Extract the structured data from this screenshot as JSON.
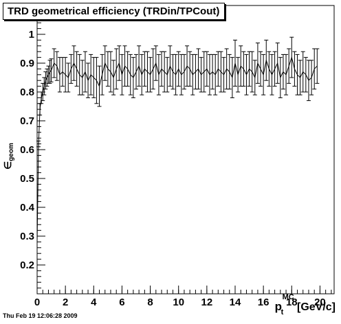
{
  "chart_data": {
    "type": "line",
    "title": "TRD geometrical efficiency (TRDin/TPCout)",
    "xlabel": {
      "symbol": "p",
      "subscript": "t",
      "superscript": "MC",
      "unit": "[GeV/c]"
    },
    "ylabel": {
      "symbol": "∈",
      "subscript": "geom"
    },
    "xlim": [
      0,
      21
    ],
    "ylim": [
      0.1,
      1.1
    ],
    "x_ticks": [
      0,
      2,
      4,
      6,
      8,
      10,
      12,
      14,
      16,
      18,
      20
    ],
    "y_ticks": [
      0.2,
      0.3,
      0.4,
      0.5,
      0.6,
      0.7,
      0.8,
      0.9,
      1
    ],
    "grid": false,
    "series": [
      {
        "x": [
          0.0,
          0.1,
          0.2,
          0.3,
          0.4,
          0.5,
          0.6,
          0.7,
          0.8,
          0.9,
          1.0,
          1.2,
          1.4,
          1.6,
          1.8,
          2.0,
          2.2,
          2.4,
          2.6,
          2.8,
          3.0,
          3.2,
          3.4,
          3.6,
          3.8,
          4.0,
          4.2,
          4.4,
          4.6,
          4.8,
          5.0,
          5.2,
          5.4,
          5.6,
          5.8,
          6.0,
          6.2,
          6.4,
          6.6,
          6.8,
          7.0,
          7.2,
          7.4,
          7.6,
          7.8,
          8.0,
          8.2,
          8.4,
          8.6,
          8.8,
          9.0,
          9.2,
          9.4,
          9.6,
          9.8,
          10.0,
          10.2,
          10.4,
          10.6,
          10.8,
          11.0,
          11.2,
          11.4,
          11.6,
          11.8,
          12.0,
          12.2,
          12.4,
          12.6,
          12.8,
          13.0,
          13.2,
          13.4,
          13.6,
          13.8,
          14.0,
          14.2,
          14.4,
          14.6,
          14.8,
          15.0,
          15.2,
          15.4,
          15.6,
          15.8,
          16.0,
          16.2,
          16.4,
          16.6,
          16.8,
          17.0,
          17.2,
          17.4,
          17.6,
          17.8,
          18.0,
          18.2,
          18.4,
          18.6,
          18.8,
          19.0,
          19.2,
          19.4,
          19.6,
          19.8
        ],
        "y": [
          0.28,
          0.62,
          0.74,
          0.78,
          0.8,
          0.82,
          0.84,
          0.85,
          0.86,
          0.87,
          0.875,
          0.9,
          0.89,
          0.86,
          0.87,
          0.86,
          0.85,
          0.88,
          0.9,
          0.88,
          0.86,
          0.85,
          0.87,
          0.84,
          0.86,
          0.85,
          0.84,
          0.82,
          0.86,
          0.9,
          0.88,
          0.87,
          0.85,
          0.88,
          0.9,
          0.86,
          0.89,
          0.88,
          0.86,
          0.85,
          0.87,
          0.89,
          0.86,
          0.88,
          0.87,
          0.86,
          0.88,
          0.9,
          0.86,
          0.88,
          0.87,
          0.86,
          0.89,
          0.87,
          0.86,
          0.88,
          0.86,
          0.87,
          0.89,
          0.88,
          0.86,
          0.87,
          0.88,
          0.86,
          0.87,
          0.88,
          0.86,
          0.87,
          0.86,
          0.88,
          0.87,
          0.86,
          0.88,
          0.87,
          0.85,
          0.9,
          0.86,
          0.89,
          0.88,
          0.86,
          0.88,
          0.87,
          0.85,
          0.9,
          0.88,
          0.86,
          0.91,
          0.88,
          0.86,
          0.88,
          0.9,
          0.85,
          0.87,
          0.86,
          0.89,
          0.92,
          0.88,
          0.86,
          0.85,
          0.87,
          0.86,
          0.84,
          0.85,
          0.88,
          0.89
        ],
        "err": [
          0.0,
          0.01,
          0.02,
          0.02,
          0.03,
          0.03,
          0.03,
          0.03,
          0.03,
          0.04,
          0.04,
          0.05,
          0.05,
          0.06,
          0.05,
          0.06,
          0.05,
          0.05,
          0.06,
          0.06,
          0.07,
          0.06,
          0.07,
          0.06,
          0.07,
          0.07,
          0.08,
          0.07,
          0.07,
          0.06,
          0.06,
          0.07,
          0.06,
          0.07,
          0.06,
          0.07,
          0.07,
          0.06,
          0.07,
          0.07,
          0.06,
          0.07,
          0.07,
          0.06,
          0.07,
          0.06,
          0.07,
          0.06,
          0.07,
          0.06,
          0.07,
          0.06,
          0.07,
          0.06,
          0.07,
          0.06,
          0.07,
          0.06,
          0.07,
          0.06,
          0.07,
          0.06,
          0.07,
          0.06,
          0.07,
          0.06,
          0.07,
          0.06,
          0.07,
          0.06,
          0.07,
          0.06,
          0.07,
          0.06,
          0.07,
          0.08,
          0.06,
          0.07,
          0.06,
          0.07,
          0.06,
          0.07,
          0.06,
          0.07,
          0.06,
          0.07,
          0.07,
          0.06,
          0.07,
          0.06,
          0.07,
          0.07,
          0.06,
          0.07,
          0.06,
          0.07,
          0.06,
          0.07,
          0.06,
          0.07,
          0.06,
          0.07,
          0.06,
          0.07,
          0.06
        ]
      }
    ]
  },
  "footer": {
    "timestamp": "Thu Feb 19 12:06:28 2009"
  }
}
